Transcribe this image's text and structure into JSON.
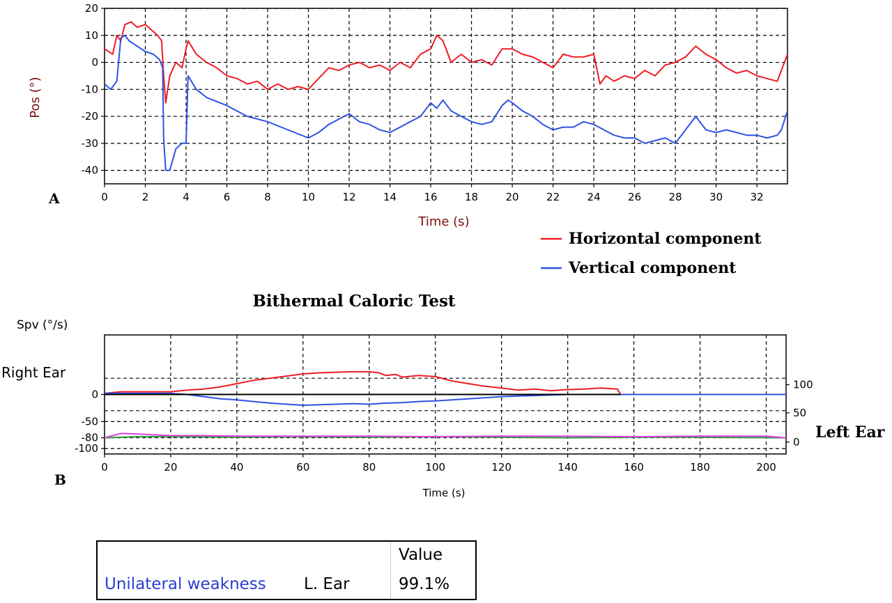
{
  "chart_data": [
    {
      "type": "line",
      "panel_label": "A",
      "title": "",
      "xlabel": "Time (s)",
      "ylabel": "Pos (°)",
      "xlim": [
        0,
        33.5
      ],
      "ylim": [
        -45,
        20
      ],
      "xticks": [
        0,
        2,
        4,
        6,
        8,
        10,
        12,
        14,
        16,
        18,
        20,
        22,
        24,
        26,
        28,
        30,
        32
      ],
      "yticks": [
        20,
        10,
        0,
        -10,
        -20,
        -30,
        -40
      ],
      "grid": true,
      "series": [
        {
          "name": "Horizontal component",
          "color": "#ee1c24",
          "x": [
            0,
            0.4,
            0.6,
            0.8,
            1.0,
            1.3,
            1.6,
            2.0,
            2.3,
            2.6,
            2.8,
            2.9,
            3.0,
            3.2,
            3.5,
            3.8,
            4.0,
            4.1,
            4.5,
            5.0,
            5.5,
            6.0,
            6.5,
            7.0,
            7.5,
            8.0,
            8.5,
            9.0,
            9.5,
            10.0,
            10.5,
            11.0,
            11.5,
            12.0,
            12.5,
            13.0,
            13.5,
            14.0,
            14.5,
            15.0,
            15.5,
            16.0,
            16.3,
            16.6,
            17.0,
            17.5,
            18.0,
            18.5,
            19.0,
            19.5,
            20.0,
            20.5,
            21.0,
            21.5,
            22.0,
            22.5,
            23.0,
            23.5,
            24.0,
            24.3,
            24.6,
            25.0,
            25.5,
            26.0,
            26.5,
            27.0,
            27.5,
            28.0,
            28.5,
            29.0,
            29.5,
            30.0,
            30.5,
            31.0,
            31.5,
            32.0,
            32.5,
            33.0,
            33.2,
            33.5
          ],
          "y": [
            5,
            3,
            10,
            8,
            14,
            15,
            13,
            14,
            12,
            10,
            8,
            -5,
            -15,
            -5,
            0,
            -2,
            5,
            8,
            3,
            0,
            -2,
            -5,
            -6,
            -8,
            -7,
            -10,
            -8,
            -10,
            -9,
            -10,
            -6,
            -2,
            -3,
            -1,
            0,
            -2,
            -1,
            -3,
            0,
            -2,
            3,
            5,
            10,
            8,
            0,
            3,
            0,
            1,
            -1,
            5,
            5,
            3,
            2,
            0,
            -2,
            3,
            2,
            2,
            3,
            -8,
            -5,
            -7,
            -5,
            -6,
            -3,
            -5,
            -1,
            0,
            2,
            6,
            3,
            1,
            -2,
            -4,
            -3,
            -5,
            -6,
            -7,
            -3,
            3
          ]
        },
        {
          "name": "Vertical component",
          "color": "#2d52e0",
          "x": [
            0,
            0.3,
            0.6,
            0.8,
            1.0,
            1.2,
            1.6,
            2.0,
            2.4,
            2.7,
            2.85,
            2.9,
            3.0,
            3.2,
            3.5,
            3.8,
            4.0,
            4.1,
            4.5,
            5.0,
            6.0,
            7.0,
            8.0,
            9.0,
            10.0,
            10.5,
            11.0,
            11.5,
            12.0,
            12.5,
            13.0,
            13.5,
            14.0,
            14.5,
            15.0,
            15.5,
            16.0,
            16.3,
            16.6,
            17.0,
            17.5,
            18.0,
            18.5,
            19.0,
            19.5,
            19.8,
            20.0,
            20.5,
            21.0,
            21.5,
            22.0,
            22.5,
            23.0,
            23.5,
            24.0,
            24.5,
            25.0,
            25.5,
            26.0,
            26.5,
            27.0,
            27.5,
            28.0,
            28.5,
            29.0,
            29.5,
            30.0,
            30.5,
            31.0,
            31.5,
            32.0,
            32.5,
            33.0,
            33.2,
            33.5
          ],
          "y": [
            -8,
            -10,
            -7,
            9,
            10,
            8,
            6,
            4,
            3,
            1,
            -2,
            -28,
            -40,
            -40,
            -32,
            -30,
            -30,
            -5,
            -10,
            -13,
            -16,
            -20,
            -22,
            -25,
            -28,
            -26,
            -23,
            -21,
            -19,
            -22,
            -23,
            -25,
            -26,
            -24,
            -22,
            -20,
            -15,
            -17,
            -14,
            -18,
            -20,
            -22,
            -23,
            -22,
            -16,
            -14,
            -15,
            -18,
            -20,
            -23,
            -25,
            -24,
            -24,
            -22,
            -23,
            -25,
            -27,
            -28,
            -28,
            -30,
            -29,
            -28,
            -30,
            -25,
            -20,
            -25,
            -26,
            -25,
            -26,
            -27,
            -27,
            -28,
            -27,
            -25,
            -18
          ]
        }
      ]
    },
    {
      "type": "line",
      "panel_label": "B",
      "title": "Bithermal Caloric Test",
      "xlabel": "Time (s)",
      "ylabel": "Spv  (°/s)",
      "xlim": [
        0,
        206
      ],
      "ylim": [
        -110,
        110
      ],
      "xticks": [
        0,
        20,
        40,
        60,
        80,
        100,
        120,
        140,
        160,
        180,
        200
      ],
      "yticks_left": [
        0,
        -50,
        -80,
        -100
      ],
      "yticks_right": [
        "100",
        "50",
        "0"
      ],
      "left_annotation": "Right Ear",
      "right_annotation": "Left Ear",
      "grid": true,
      "series": [
        {
          "name": "Right ear horizontal",
          "color": "#ee1c24",
          "x": [
            0,
            5,
            10,
            20,
            25,
            30,
            35,
            40,
            45,
            50,
            55,
            60,
            65,
            70,
            75,
            80,
            83,
            85,
            88,
            90,
            95,
            100,
            105,
            110,
            115,
            120,
            125,
            130,
            135,
            140,
            145,
            150,
            155,
            156,
            160,
            180,
            206
          ],
          "y": [
            2,
            5,
            5,
            5,
            8,
            10,
            14,
            20,
            26,
            30,
            34,
            38,
            40,
            41,
            42,
            42,
            40,
            35,
            37,
            32,
            35,
            33,
            25,
            20,
            15,
            12,
            8,
            10,
            7,
            9,
            10,
            12,
            10,
            0,
            0,
            0,
            0
          ]
        },
        {
          "name": "Right ear vertical",
          "color": "#2d52e0",
          "x": [
            0,
            10,
            20,
            25,
            30,
            35,
            40,
            45,
            50,
            55,
            60,
            65,
            70,
            75,
            80,
            85,
            90,
            95,
            100,
            105,
            110,
            115,
            120,
            125,
            130,
            135,
            140,
            206
          ],
          "y": [
            2,
            2,
            2,
            0,
            -4,
            -8,
            -10,
            -13,
            -16,
            -18,
            -20,
            -19,
            -18,
            -17,
            -18,
            -16,
            -15,
            -13,
            -12,
            -10,
            -8,
            -6,
            -4,
            -3,
            -2,
            -1,
            0,
            0
          ]
        },
        {
          "name": "Left ear green",
          "color": "#2a9a3a",
          "x": [
            0,
            10,
            20,
            40,
            60,
            80,
            100,
            120,
            140,
            160,
            180,
            206
          ],
          "y": [
            -80,
            -78,
            -78,
            -79,
            -78,
            -79,
            -78,
            -79,
            -80,
            -79,
            -79,
            -80
          ]
        },
        {
          "name": "Left ear magenta",
          "color": "#e040e0",
          "x": [
            0,
            5,
            10,
            20,
            30,
            40,
            60,
            80,
            100,
            120,
            140,
            160,
            180,
            200,
            206
          ],
          "y": [
            -80,
            -72,
            -73,
            -76,
            -76,
            -77,
            -77,
            -77,
            -78,
            -77,
            -77,
            -78,
            -77,
            -77,
            -80
          ]
        },
        {
          "name": "Baseline",
          "color": "#000000",
          "x": [
            0,
            156
          ],
          "y": [
            0,
            0
          ]
        }
      ]
    }
  ],
  "legend": {
    "items": [
      {
        "label": "Horizontal component",
        "color": "#ee1c24"
      },
      {
        "label": "Vertical component",
        "color": "#2d52e0"
      }
    ]
  },
  "results_table": {
    "header": "Value",
    "row_label": "Unilateral weakness",
    "row_ear": "L. Ear",
    "row_value": "99.1%"
  }
}
